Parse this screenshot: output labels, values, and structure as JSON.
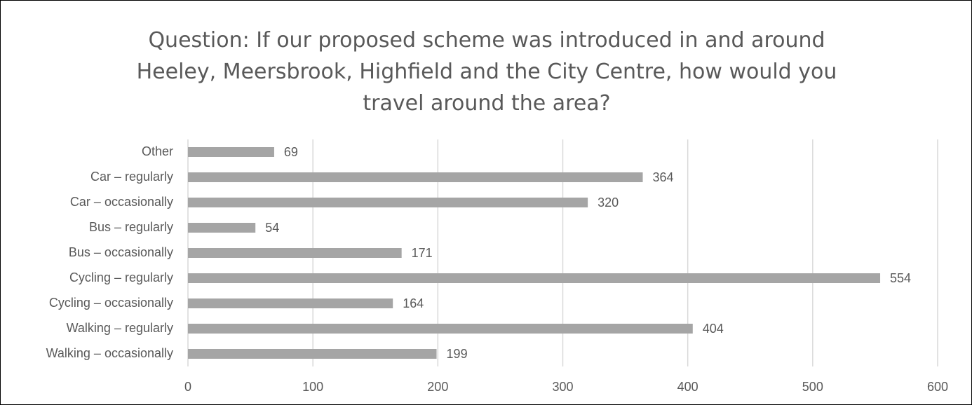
{
  "chart_data": {
    "type": "bar",
    "orientation": "horizontal",
    "title": "Question: If our proposed scheme was introduced in and around Heeley, Meersbrook, Highfield and the City Centre, how would you travel around the area?",
    "categories": [
      "Other",
      "Car – regularly",
      "Car – occasionally",
      "Bus – regularly",
      "Bus – occasionally",
      "Cycling – regularly",
      "Cycling – occasionally",
      "Walking – regularly",
      "Walking – occasionally"
    ],
    "values": [
      69,
      364,
      320,
      54,
      171,
      554,
      164,
      404,
      199
    ],
    "color": "#a5a5a5",
    "xlim": [
      0,
      600
    ],
    "xticks": [
      0,
      100,
      200,
      300,
      400,
      500,
      600
    ],
    "grid": true
  }
}
